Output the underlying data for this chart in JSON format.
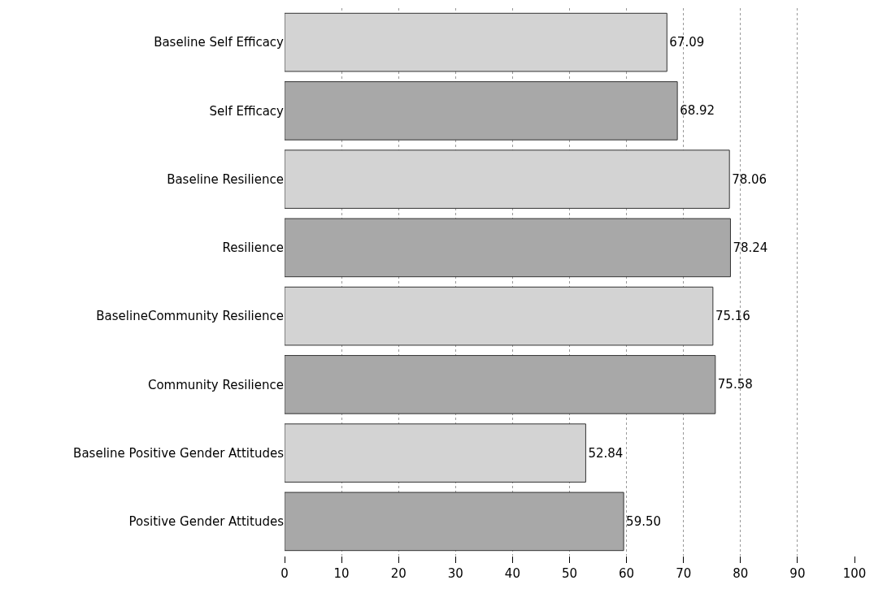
{
  "chart_data": {
    "type": "bar",
    "orientation": "horizontal",
    "categories": [
      "Baseline Self Efficacy",
      "Self Efficacy",
      "Baseline Resilience",
      "Resilience",
      "BaselineCommunity Resilience",
      "Community Resilience",
      "Baseline Positive Gender Attitudes",
      "Positive Gender Attitudes"
    ],
    "values": [
      67.09,
      68.92,
      78.06,
      78.24,
      75.16,
      75.58,
      52.84,
      59.5
    ],
    "colors": [
      "#d3d3d3",
      "#a8a8a8",
      "#d3d3d3",
      "#a8a8a8",
      "#d3d3d3",
      "#a8a8a8",
      "#d3d3d3",
      "#a8a8a8"
    ],
    "value_labels": [
      "67.09",
      "68.92",
      "78.06",
      "78.24",
      "75.16",
      "75.58",
      "52.84",
      "59.50"
    ],
    "xlim": [
      0,
      100
    ],
    "xticks": [
      0,
      10,
      20,
      30,
      40,
      50,
      60,
      70,
      80,
      90,
      100
    ],
    "grid": "x"
  }
}
